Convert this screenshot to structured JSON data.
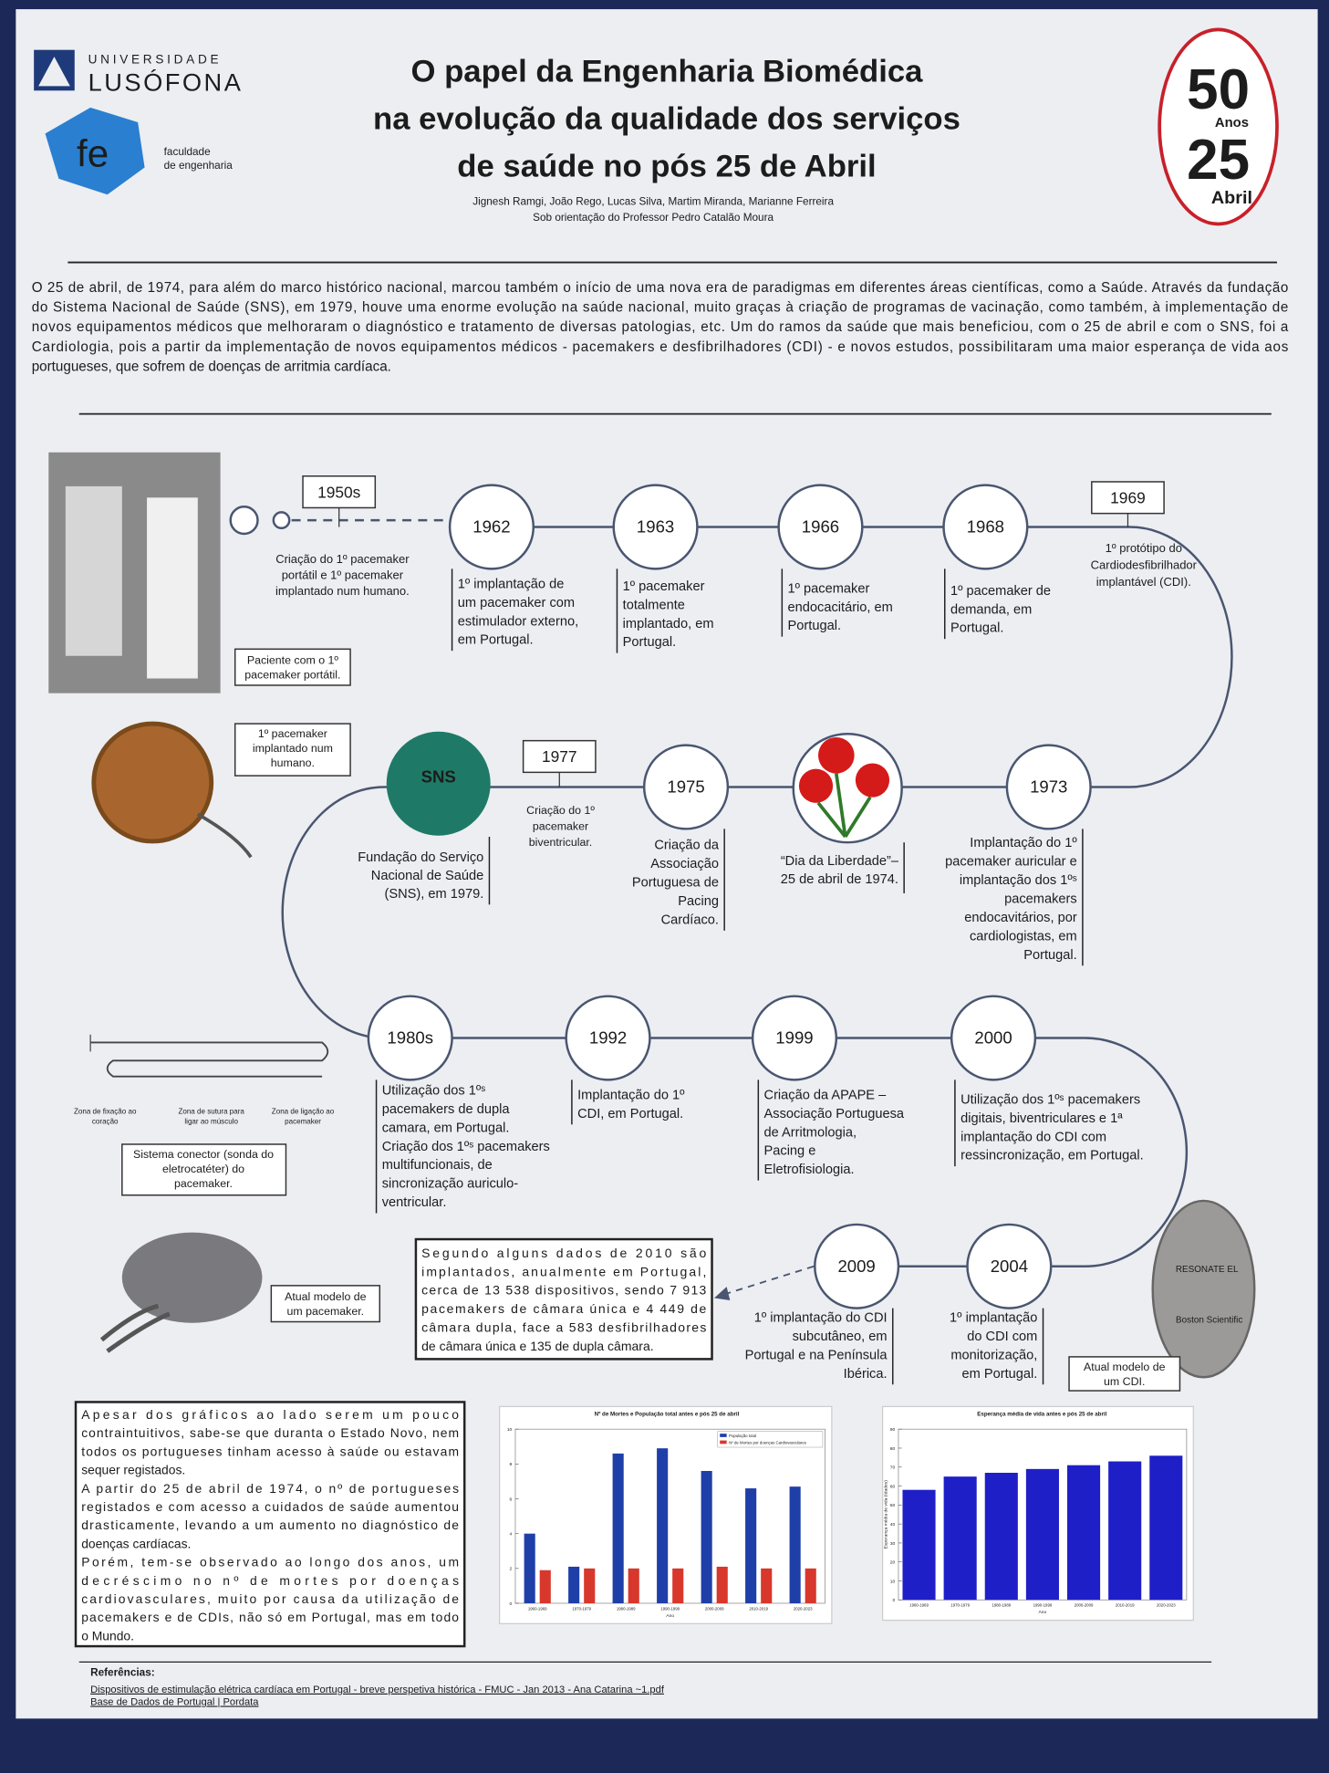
{
  "header": {
    "university": [
      "UNIVERSIDADE",
      "LUSÓFONA"
    ],
    "faculty_logo": "fe",
    "faculty": [
      "faculdade",
      "de engenharia"
    ],
    "title": [
      "O papel da Engenharia Biomédica",
      "na evolução da qualidade dos serviços",
      "de saúde no pós 25 de Abril"
    ],
    "authors": "Jignesh Ramgi, João Rego, Lucas Silva, Martim Miranda, Marianne Ferreira",
    "supervisor": "Sob orientação do Professor Pedro Catalão Moura",
    "anniversary": [
      "50",
      "Anos",
      "25",
      "Abril"
    ]
  },
  "intro": [
    "O 25 de abril, de 1974, para além do marco histórico nacional, marcou também o início de uma nova era de paradigmas em diferentes áreas científicas, como a Saúde. Através da fundação",
    "do Sistema Nacional de Saúde (SNS), em 1979, houve uma enorme evolução na saúde nacional, muito graças à criação de programas de vacinação, como também, à implementação de",
    "novos equipamentos médicos que melhoraram o diagnóstico e tratamento de diversas patologias, etc. Um do ramos da saúde que mais beneficiou, com o 25 de abril e com o SNS, foi a",
    "Cardiologia, pois a partir da implementação de novos equipamentos médicos - pacemakers e desfibrilhadores (CDI) - e novos estudos, possibilitaram uma maior esperança de vida aos",
    "portugueses, que sofrem de doenças de arritmia cardíaca."
  ],
  "timeline": [
    {
      "year": "1950s",
      "text": [
        "Criação do 1º pacemaker",
        "portátil e 1º pacemaker",
        "implantado num humano."
      ]
    },
    {
      "year": "1962",
      "text": [
        "1º implantação de",
        "um pacemaker com",
        "estimulador externo,",
        "em Portugal."
      ]
    },
    {
      "year": "1963",
      "text": [
        "1º pacemaker",
        "totalmente",
        "implantado, em",
        "Portugal."
      ]
    },
    {
      "year": "1966",
      "text": [
        "1º pacemaker",
        "endocacitário, em",
        "Portugal."
      ]
    },
    {
      "year": "1968",
      "text": [
        "1º pacemaker de",
        "demanda, em",
        "Portugal."
      ]
    },
    {
      "year": "1969",
      "text": [
        "1º protótipo do",
        "Cardiodesfibrilhador",
        "implantável (CDI)."
      ]
    },
    {
      "year": "1973",
      "text": [
        "Implantação do 1º",
        "pacemaker auricular e",
        "implantação dos 1ºˢ",
        "pacemakers",
        "endocavitários, por",
        "cardiologistas, em",
        "Portugal."
      ]
    },
    {
      "year": "1975",
      "text": [
        "Criação da",
        "Associação",
        "Portuguesa de",
        "Pacing",
        "Cardíaco."
      ]
    },
    {
      "year": "1977",
      "text": [
        "Criação do 1º",
        "pacemaker",
        "biventricular."
      ]
    },
    {
      "year": "1980s",
      "text": [
        "Utilização dos 1ºˢ",
        "pacemakers de dupla",
        "camara, em Portugal.",
        "Criação dos 1ºˢ pacemakers",
        "multifuncionais, de",
        "sincronização auriculo-",
        "ventricular."
      ]
    },
    {
      "year": "1992",
      "text": [
        "Implantação do 1º",
        "CDI, em Portugal."
      ]
    },
    {
      "year": "1999",
      "text": [
        "Criação da APAPE –",
        "Associação Portuguesa",
        "de Arritmologia,",
        "Pacing e",
        "Eletrofisiologia."
      ]
    },
    {
      "year": "2000",
      "text": [
        "Utilização dos 1ºˢ pacemakers",
        "digitais, biventriculares e 1ª",
        "implantação do CDI com",
        "ressincronização, em Portugal."
      ]
    },
    {
      "year": "2004",
      "text": [
        "1º implantação",
        "do CDI com",
        "monitorização,",
        "em Portugal."
      ]
    },
    {
      "year": "2009",
      "text": [
        "1º implantação do CDI",
        "subcutâneo, em",
        "Portugal e na Península",
        "Ibérica."
      ]
    }
  ],
  "liberty": [
    "“Dia da Liberdade”–",
    "25 de abril de 1974."
  ],
  "sns": {
    "logo": "SNS",
    "text": [
      "Fundação do Serviço",
      "Nacional de Saúde",
      "(SNS), em 1979."
    ]
  },
  "captions": {
    "patient": [
      "Paciente com o 1º",
      "pacemaker portátil."
    ],
    "first_implant": [
      "1º pacemaker",
      "implantado num",
      "humano."
    ],
    "lead_zones": [
      [
        "Zona de fixação ao",
        "coração"
      ],
      [
        "Zona de sutura para",
        "ligar ao músculo"
      ],
      [
        "Zona de ligação ao",
        "pacemaker"
      ]
    ],
    "connector": [
      "Sistema conector (sonda do",
      "eletrocatéter) do",
      "pacemaker."
    ],
    "pacemaker_model": [
      "Atual modelo de",
      "um pacemaker."
    ],
    "cdi_model": [
      "Atual modelo de",
      "um CDI."
    ],
    "cdi_device": [
      "RESONATE EL",
      "Boston Scientific"
    ]
  },
  "stats": [
    "Segundo alguns dados de 2010 são",
    "implantados, anualmente em Portugal,",
    "cerca de 13 538 dispositivos, sendo 7 913",
    "pacemakers de câmara única e 4 449 de",
    "câmara dupla, face a 583 desfibrilhadores",
    "de câmara única e 135 de dupla câmara."
  ],
  "conclusion": [
    "Apesar dos gráficos ao lado serem um pouco",
    "contraintuitivos, sabe-se que duranta o Estado Novo, nem",
    "todos os portugueses tinham acesso à saúde ou estavam",
    "sequer registados.",
    "A partir do 25 de abril de 1974, o nº de portugueses",
    "registados e com acesso a cuidados de saúde aumentou",
    "drasticamente, levando a um aumento no diagnóstico de",
    "doenças cardíacas.",
    "Porém, tem-se observado ao longo dos anos, um",
    "decréscimo no nº de mortes por doenças",
    "cardiovasculares, muito por causa da utilização de",
    "pacemakers e de CDIs, não só em Portugal, mas em todo",
    "o Mundo."
  ],
  "chart_data": [
    {
      "type": "bar",
      "title": "Nº de Mortes e População total antes e pós 25 de abril",
      "x_label": "Ano",
      "categories": [
        "1960-1969",
        "1970-1979",
        "1980-1989",
        "1990-1999",
        "2000-2009",
        "2010-2019",
        "2020-2023"
      ],
      "series": [
        {
          "name": "População total",
          "color": "#1f3fa8",
          "values": [
            4.0,
            2.1,
            8.6,
            8.9,
            7.6,
            6.6,
            6.7
          ]
        },
        {
          "name": "Nº de Mortes por doenças Cardiovasculares",
          "color": "#d8372c",
          "values": [
            1.9,
            2.0,
            2.0,
            2.0,
            2.1,
            2.0,
            2.0
          ]
        }
      ],
      "ylim": [
        0,
        10
      ],
      "yticks": [
        0,
        2,
        4,
        6,
        8,
        10
      ],
      "legend": "upper-right"
    },
    {
      "type": "bar",
      "title": "Esperança média de vida antes e pós 25 de abril",
      "x_label": "Ano",
      "y_label": "Esperança média de vida (Idades)",
      "categories": [
        "1960-1969",
        "1970-1979",
        "1980-1989",
        "1990-1999",
        "2000-2009",
        "2010-2019",
        "2020-2023"
      ],
      "values": [
        58,
        65,
        67,
        69,
        71,
        73,
        76
      ],
      "color": "#1f1fc8",
      "ylim": [
        0,
        90
      ],
      "yticks": [
        0,
        10,
        20,
        30,
        40,
        50,
        60,
        70,
        80,
        90
      ]
    }
  ],
  "references": {
    "heading": "Referências:",
    "items": [
      "Dispositivos de estimulação elétrica cardíaca em Portugal - breve perspetiva histórica - FMUC - Jan 2013 - Ana Catarina ~1.pdf",
      "Base de Dados de Portugal | Pordata"
    ]
  }
}
